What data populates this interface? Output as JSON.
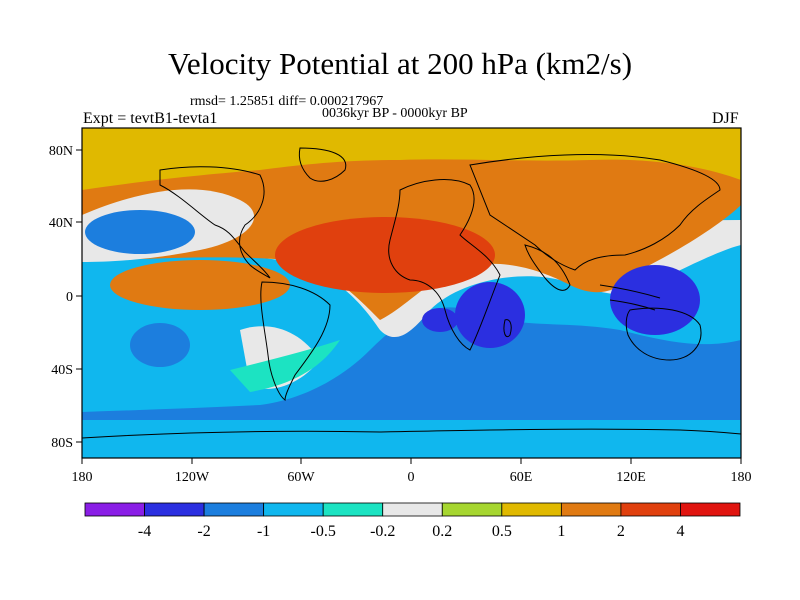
{
  "title": "Velocity Potential at 200 hPa (km2/s)",
  "stats_line": "rmsd= 1.25851 diff= 0.000217967",
  "period_line": "0036kyr BP - 0000kyr BP",
  "experiment_label": "Expt = tevtB1-tevta1",
  "season_label": "DJF",
  "axes": {
    "lon_ticks": [
      "180",
      "120W",
      "60W",
      "0",
      "60E",
      "120E",
      "180"
    ],
    "lat_ticks": [
      "80N",
      "40N",
      "0",
      "40S",
      "80S"
    ]
  },
  "colorbar": {
    "colors": [
      "#8a1ee6",
      "#2b2fe0",
      "#1c7ede",
      "#10b7ee",
      "#1ce3c2",
      "#e8e8e8",
      "#a6d630",
      "#e0b900",
      "#e07a12",
      "#e0400e",
      "#e0140f"
    ],
    "labels": [
      "-4",
      "-2",
      "-1",
      "-0.5",
      "-0.2",
      "0.2",
      "0.5",
      "1",
      "2",
      "4"
    ]
  }
}
